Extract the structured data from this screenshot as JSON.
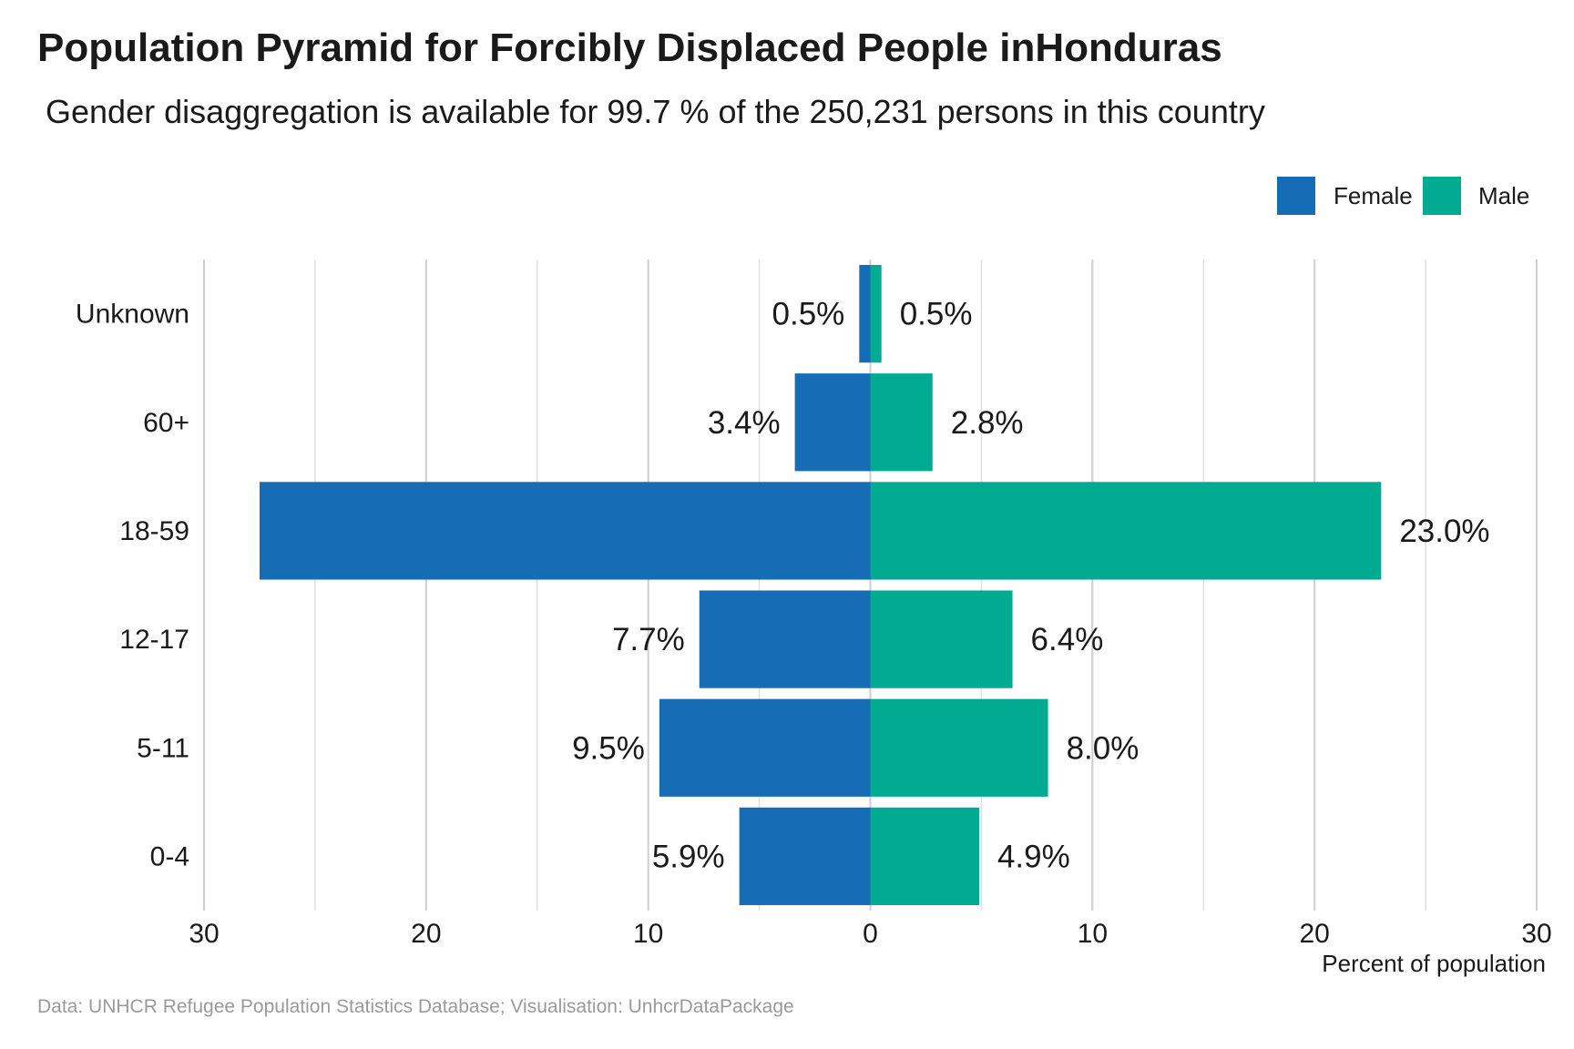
{
  "title": "Population Pyramid for Forcibly Displaced People inHonduras",
  "subtitle": "Gender disaggregation is available for 99.7 % of the 250,231 persons in this country",
  "caption": "Data: UNHCR Refugee Population Statistics Database; Visualisation: UnhcrDataPackage",
  "chart_data": {
    "type": "bar",
    "orientation": "horizontal-pyramid",
    "categories": [
      "Unknown",
      "60+",
      "18-59",
      "12-17",
      "5-11",
      "0-4"
    ],
    "series": [
      {
        "name": "Female",
        "color": "#166cb5",
        "values": [
          0.5,
          3.4,
          27.5,
          7.7,
          9.5,
          5.9
        ],
        "labels": [
          "0.5%",
          "3.4%",
          "",
          "7.7%",
          "9.5%",
          "5.9%"
        ]
      },
      {
        "name": "Male",
        "color": "#00ab92",
        "values": [
          0.5,
          2.8,
          23.0,
          6.4,
          8.0,
          4.9
        ],
        "labels": [
          "0.5%",
          "2.8%",
          "23.0%",
          "6.4%",
          "8.0%",
          "4.9%"
        ]
      }
    ],
    "xlim": [
      -30,
      30
    ],
    "xticks": [
      -30,
      -20,
      -10,
      0,
      10,
      20,
      30
    ],
    "xtick_labels": [
      "30",
      "20",
      "10",
      "0",
      "10",
      "20",
      "30"
    ],
    "xlabel": "Percent of population",
    "ylabel": "",
    "grid": true,
    "legend": "top-right"
  }
}
